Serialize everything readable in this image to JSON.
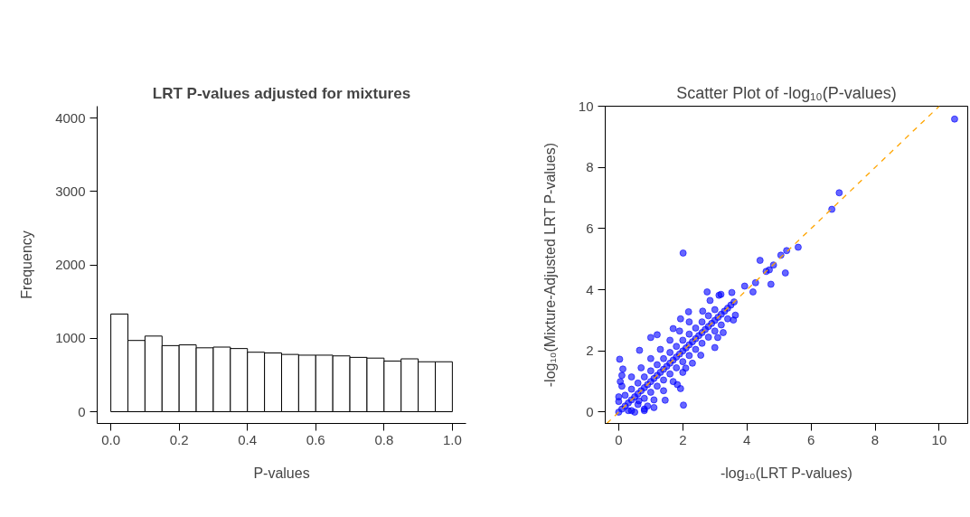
{
  "chart_data": [
    {
      "type": "histogram",
      "title": "LRT P-values adjusted for mixtures",
      "xlabel": "P-values",
      "ylabel": "Frequency",
      "bins": [
        0,
        0.05,
        0.1,
        0.15,
        0.2,
        0.25,
        0.3,
        0.35,
        0.4,
        0.45,
        0.5,
        0.55,
        0.6,
        0.65,
        0.7,
        0.75,
        0.8,
        0.85,
        0.9,
        0.95,
        1
      ],
      "values": [
        1330,
        970,
        1030,
        900,
        910,
        870,
        880,
        860,
        810,
        800,
        780,
        770,
        770,
        760,
        740,
        730,
        690,
        720,
        680,
        680
      ],
      "color": "#ffffff",
      "xlim": [
        -0.04,
        1.04
      ],
      "ylim": [
        -160,
        4160
      ],
      "xticks": [
        {
          "value": 0,
          "label": "0.0"
        },
        {
          "value": 0.2,
          "label": "0.2"
        },
        {
          "value": 0.4,
          "label": "0.4"
        },
        {
          "value": 0.6,
          "label": "0.6"
        },
        {
          "value": 0.8,
          "label": "0.8"
        },
        {
          "value": 1,
          "label": "1.0"
        }
      ],
      "yticks": [
        0,
        1000,
        2000,
        3000,
        4000
      ],
      "grid": false
    },
    {
      "type": "scatter",
      "title": "Scatter Plot of -log₁₀(P-values)",
      "xlabel": "-log₁₀(LRT P-values)",
      "ylabel": "-log₁₀(Mixture-Adjusted LRT P-values)",
      "xlim": [
        -0.42,
        10.89
      ],
      "ylim": [
        -0.37,
        10
      ],
      "xticks": [
        0,
        2,
        4,
        6,
        8,
        10
      ],
      "yticks": [
        0,
        2,
        4,
        6,
        8,
        10
      ],
      "grid": false,
      "series": [
        {
          "type": "scatter",
          "color": "#0000ff",
          "marker": "circle",
          "x": [
            0,
            0.1,
            0.2,
            0.3,
            0.4,
            0.5,
            0.6,
            0.7,
            0.8,
            0.9,
            1,
            1.1,
            1.2,
            1.3,
            1.4,
            1.5,
            1.6,
            1.7,
            1.8,
            1.9,
            2,
            2.1,
            2.2,
            2.3,
            2.4,
            2.5,
            2.6,
            2.7,
            2.8,
            2.9,
            3,
            3.1,
            3.2,
            3.3,
            3.4,
            3.5,
            3.6,
            0,
            0.2,
            0.4,
            0.6,
            0.8,
            1,
            1.2,
            1.4,
            1.6,
            1.8,
            2,
            2.2,
            2.4,
            2.6,
            2.8,
            3,
            0.1,
            0.4,
            0.7,
            1,
            1.3,
            1.6,
            1.9,
            2.2,
            0.4,
            0.6,
            0.8,
            1,
            1.2,
            1.4,
            1.6,
            1.8,
            2,
            2.2,
            2.4,
            2.6,
            2.8,
            3,
            3.2,
            3.4,
            0.8,
            1.1,
            1.4,
            1.7,
            2,
            2.3,
            0,
            0.05,
            0.1,
            0.5,
            0.8,
            1.1,
            0.3,
            10.48,
            6.88,
            6.65,
            2.01,
            5.6,
            5.24,
            5.06,
            4.41,
            4.83,
            4.7,
            4.6,
            5.2,
            4.75,
            4.27,
            3.93,
            4.19,
            2.76,
            2.02,
            0.03,
            0.13,
            0.65,
            1,
            1.2,
            3,
            3.58,
            3.64,
            3.19,
            3.53,
            3.26,
            3.09,
            2.56,
            1.93,
            2.18,
            1.45,
            1.93,
            1.83,
            2.09,
            2.85,
            3.13,
            2.62,
            1.7,
            0.63,
            0.9
          ],
          "values": [
            0,
            0.1,
            0.2,
            0.3,
            0.4,
            0.5,
            0.6,
            0.7,
            0.8,
            0.9,
            1,
            1.1,
            1.2,
            1.3,
            1.4,
            1.5,
            1.6,
            1.7,
            1.8,
            1.9,
            2,
            2.1,
            2.2,
            2.3,
            2.4,
            2.5,
            2.6,
            2.7,
            2.8,
            2.9,
            3,
            3.1,
            3.2,
            3.3,
            3.4,
            3.5,
            3.6,
            0.35,
            0.55,
            0.75,
            0.95,
            1.15,
            1.35,
            1.55,
            1.75,
            1.95,
            2.15,
            2.35,
            2.55,
            2.75,
            2.95,
            3.15,
            3.35,
            0.85,
            1.15,
            1.45,
            1.75,
            2.05,
            2.35,
            2.65,
            2.95,
            0.05,
            0.25,
            0.45,
            0.65,
            0.85,
            1.05,
            1.25,
            1.45,
            1.65,
            1.85,
            2.05,
            2.25,
            2.45,
            2.65,
            2.85,
            3.05,
            0.1,
            0.4,
            0.7,
            1,
            1.3,
            1.6,
            0.5,
            1,
            1.2,
            0,
            0.05,
            0.15,
            0.05,
            9.58,
            7.17,
            6.63,
            5.2,
            5.39,
            5.28,
            5.13,
            4.96,
            4.81,
            4.65,
            4.6,
            4.55,
            4.18,
            4.23,
            4.12,
            3.93,
            3.93,
            0.23,
            1.73,
            1.41,
            2.02,
            2.44,
            2.53,
            2.11,
            3.01,
            3.17,
            3.85,
            3.91,
            2.6,
            2.44,
            1.86,
            3.05,
            3.28,
            0.39,
            0.77,
            0.9,
            1.44,
            3.65,
            3.82,
            3.3,
            2.73,
            0.37,
            0.2
          ]
        },
        {
          "type": "line",
          "color": "#ffa500",
          "line_style": "dashed",
          "x": [
            -0.37,
            10
          ],
          "values": [
            -0.37,
            10
          ]
        }
      ]
    }
  ]
}
